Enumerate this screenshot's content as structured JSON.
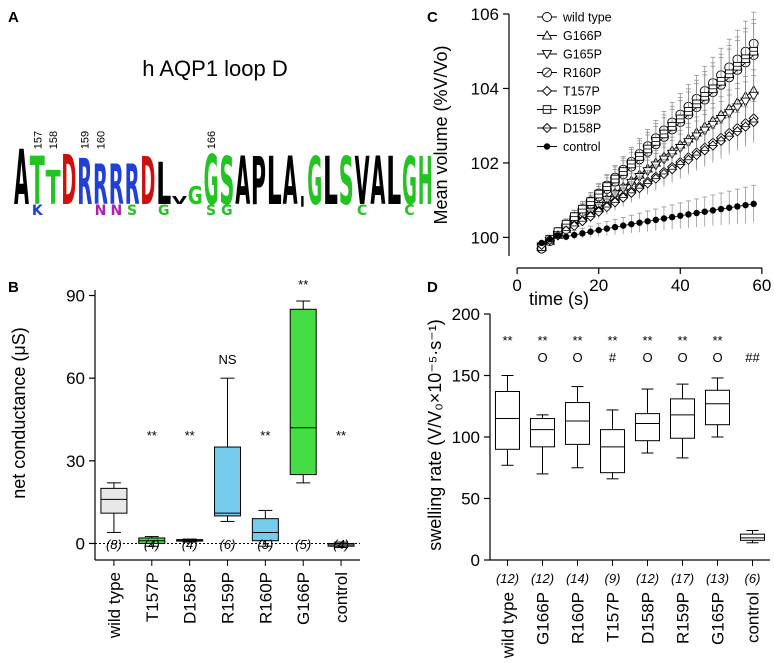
{
  "panels": {
    "a": {
      "label": "A",
      "title": "h AQP1 loop D",
      "position_numbers": [
        "157",
        "158",
        "159",
        "160",
        "166"
      ],
      "sequence_logo": {
        "main_letters": [
          "A",
          "T",
          "T",
          "D",
          "R",
          "R",
          "R",
          "R",
          "D",
          "L",
          "V",
          "G",
          "G",
          "S",
          "A",
          "P",
          "L",
          "A",
          "|",
          "G",
          "L",
          "S",
          "V",
          "A",
          "L",
          "G",
          "H"
        ],
        "minor_letters": [
          "K",
          "N",
          "N",
          "S",
          "G",
          "S",
          "G",
          "C",
          "C"
        ],
        "colors": {
          "hydrophobic": "#000000",
          "polar": "#22c422",
          "basic": "#1f3fd6",
          "acidic": "#cc1010",
          "amide": "#aa22aa"
        }
      }
    },
    "b": {
      "label": "B",
      "chart_data": {
        "type": "box",
        "categories": [
          "wild type",
          "T157P",
          "D158P",
          "R159P",
          "R160P",
          "G166P",
          "control"
        ],
        "n_labels": [
          "(8)",
          "(4)",
          "(4)",
          "(6)",
          "(5)",
          "(5)",
          "(4)"
        ],
        "significance": [
          "",
          "**",
          "**",
          "NS",
          "**",
          "**",
          "**"
        ],
        "box_colors": [
          "#e8e8e8",
          "#44dd44",
          "#44dd44",
          "#77ccee",
          "#77ccee",
          "#44dd44",
          "#e8e8e8"
        ],
        "boxes": [
          {
            "min": 4,
            "q1": 11,
            "median": 16,
            "q3": 20,
            "max": 22
          },
          {
            "min": -1,
            "q1": 0,
            "median": 1,
            "q3": 2,
            "max": 2.5
          },
          {
            "min": 0.5,
            "q1": 1,
            "median": 1.2,
            "q3": 1.4,
            "max": 1.6
          },
          {
            "min": 8,
            "q1": 10,
            "median": 11,
            "q3": 35,
            "max": 60
          },
          {
            "min": -1,
            "q1": 1,
            "median": 4,
            "q3": 9,
            "max": 12
          },
          {
            "min": 22,
            "q1": 25,
            "median": 42,
            "q3": 85,
            "max": 88
          },
          {
            "min": -1.5,
            "q1": -1,
            "median": -0.5,
            "q3": 0,
            "max": 0.5
          }
        ],
        "ylabel": "net conductance (μS)",
        "ylim": [
          -6,
          92
        ],
        "yticks": [
          0,
          30,
          60,
          90
        ],
        "reference_line": 0
      }
    },
    "c": {
      "label": "C",
      "chart_data": {
        "type": "line",
        "xlabel": "time (s)",
        "ylabel": "Mean volume (%V/Vo)",
        "xlim": [
          -2,
          62
        ],
        "ylim": [
          99.5,
          106
        ],
        "xticks": [
          0,
          20,
          40,
          60
        ],
        "yticks": [
          100,
          102,
          104,
          106
        ],
        "x_start": 6,
        "x_end": 58,
        "points": 27,
        "series": [
          {
            "name": "wild type",
            "marker": "circle",
            "start": 99.7,
            "end": 105.2,
            "err": 0.8
          },
          {
            "name": "G166P",
            "marker": "triangle-up",
            "start": 99.75,
            "end": 103.95,
            "err": 0.5
          },
          {
            "name": "G165P",
            "marker": "triangle-down",
            "start": 99.75,
            "end": 103.8,
            "err": 0.5
          },
          {
            "name": "R160P",
            "marker": "circle-slash",
            "start": 99.7,
            "end": 104.9,
            "err": 0.8
          },
          {
            "name": "T157P",
            "marker": "diamond",
            "start": 99.8,
            "end": 103.2,
            "err": 0.5
          },
          {
            "name": "R159P",
            "marker": "square-line",
            "start": 99.75,
            "end": 105.0,
            "err": 0.8
          },
          {
            "name": "D158P",
            "marker": "diamond-cross",
            "start": 99.8,
            "end": 103.1,
            "err": 0.5
          },
          {
            "name": "control",
            "marker": "filled-circle",
            "start": 99.85,
            "end": 100.9,
            "err": 0.45
          }
        ]
      }
    },
    "d": {
      "label": "D",
      "chart_data": {
        "type": "box",
        "categories": [
          "wild type",
          "G166P",
          "R160P",
          "T157P",
          "D158P",
          "R159P",
          "G165P",
          "control"
        ],
        "n_labels": [
          "(12)",
          "(12)",
          "(14)",
          "(9)",
          "(12)",
          "(17)",
          "(13)",
          "(6)"
        ],
        "significance_row1": [
          "**",
          "**",
          "**",
          "**",
          "**",
          "**",
          "**",
          ""
        ],
        "significance_row2": [
          "",
          "O",
          "O",
          "#",
          "O",
          "O",
          "O",
          "##"
        ],
        "boxes": [
          {
            "min": 77,
            "q1": 90,
            "median": 115,
            "q3": 137,
            "max": 150
          },
          {
            "min": 70,
            "q1": 92,
            "median": 106,
            "q3": 115,
            "max": 118
          },
          {
            "min": 75,
            "q1": 94,
            "median": 113,
            "q3": 128,
            "max": 141
          },
          {
            "min": 66,
            "q1": 71,
            "median": 92,
            "q3": 106,
            "max": 122
          },
          {
            "min": 87,
            "q1": 97,
            "median": 111,
            "q3": 119,
            "max": 139
          },
          {
            "min": 83,
            "q1": 99,
            "median": 118,
            "q3": 131,
            "max": 143
          },
          {
            "min": 100,
            "q1": 110,
            "median": 127,
            "q3": 138,
            "max": 148
          },
          {
            "min": 14,
            "q1": 16,
            "median": 18,
            "q3": 21,
            "max": 24
          }
        ],
        "ylabel": "swelling rate (V/V₀×10⁻⁵·s⁻¹)",
        "ylim": [
          0,
          200
        ],
        "yticks": [
          0,
          50,
          100,
          150,
          200
        ]
      }
    }
  }
}
